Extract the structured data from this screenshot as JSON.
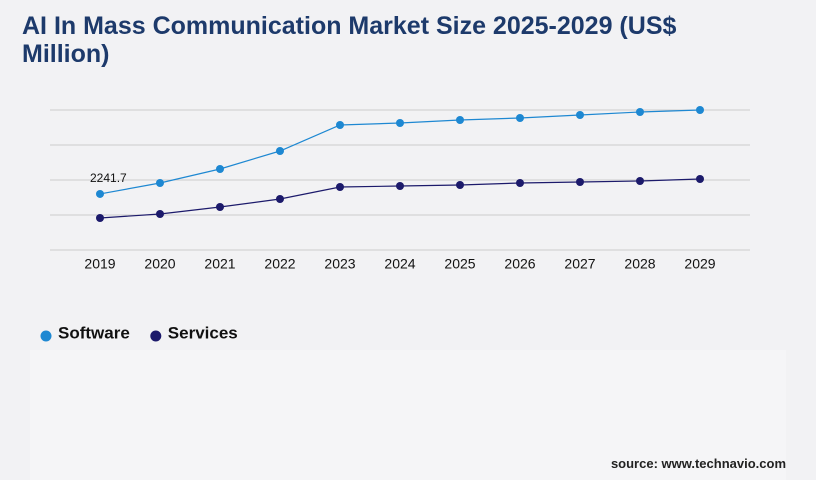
{
  "chart_data": {
    "type": "line",
    "title": "AI In Mass Communication Market Size 2025-2029 (US$ Million)",
    "categories": [
      "2019",
      "2020",
      "2021",
      "2022",
      "2023",
      "2024",
      "2025",
      "2026",
      "2027",
      "2028",
      "2029"
    ],
    "series": [
      {
        "name": "Software",
        "color": "#1e88d2",
        "values": [
          2241.7,
          2680,
          3240,
          3960,
          5000,
          5080,
          5200,
          5280,
          5400,
          5520,
          5600
        ]
      },
      {
        "name": "Services",
        "color": "#1c1a6b",
        "values": [
          1280,
          1440,
          1720,
          2040,
          2520,
          2560,
          2600,
          2680,
          2720,
          2760,
          2840
        ]
      }
    ],
    "data_label_points": [
      [
        0,
        0
      ]
    ],
    "ylim": [
      0,
      5600
    ],
    "yticks": [
      0,
      1400,
      2800,
      4200,
      5600
    ],
    "grid": true,
    "source": "source: www.technavio.com"
  }
}
